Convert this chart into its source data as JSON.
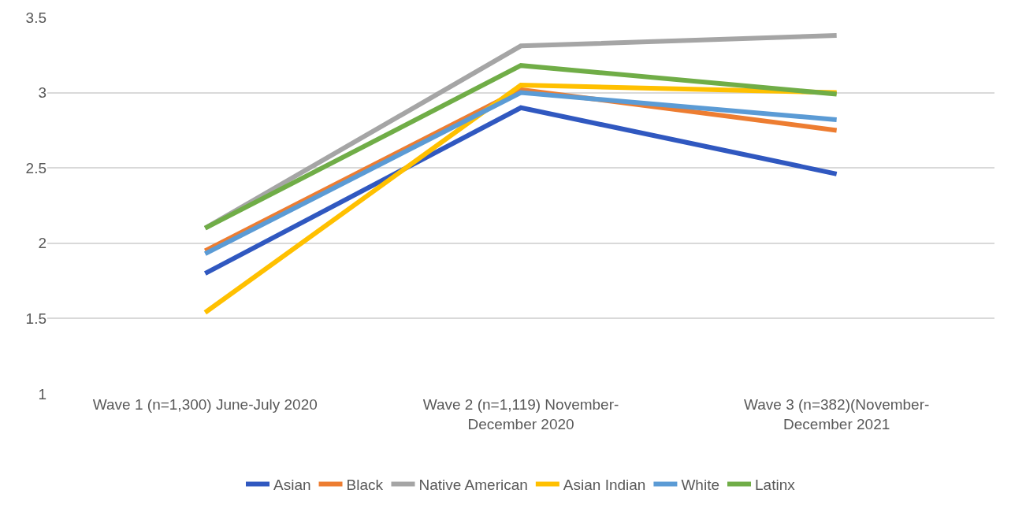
{
  "chart_data": {
    "type": "line",
    "categories": [
      "Wave 1 (n=1,300) June-July 2020",
      "Wave 2 (n=1,119) November-\nDecember 2020",
      "Wave 3 (n=382)(November-\nDecember 2021"
    ],
    "series": [
      {
        "name": "Asian",
        "color": "#3058c0",
        "values": [
          1.8,
          2.9,
          2.46
        ]
      },
      {
        "name": "Black",
        "color": "#ed7d31",
        "values": [
          1.95,
          3.02,
          2.75
        ]
      },
      {
        "name": "Native American",
        "color": "#a5a5a5",
        "values": [
          2.1,
          3.31,
          3.38
        ]
      },
      {
        "name": "Asian Indian",
        "color": "#ffc000",
        "values": [
          1.54,
          3.05,
          3.0
        ]
      },
      {
        "name": "White",
        "color": "#5b9bd5",
        "values": [
          1.93,
          3.0,
          2.82
        ]
      },
      {
        "name": "Latinx",
        "color": "#70ad47",
        "values": [
          2.1,
          3.18,
          2.99
        ]
      }
    ],
    "ylim": [
      1,
      3.5
    ],
    "yticks": [
      1,
      1.5,
      2,
      2.5,
      3,
      3.5
    ],
    "grid": "y",
    "legend": "bottom",
    "marker": "none",
    "line_style": "solid"
  }
}
